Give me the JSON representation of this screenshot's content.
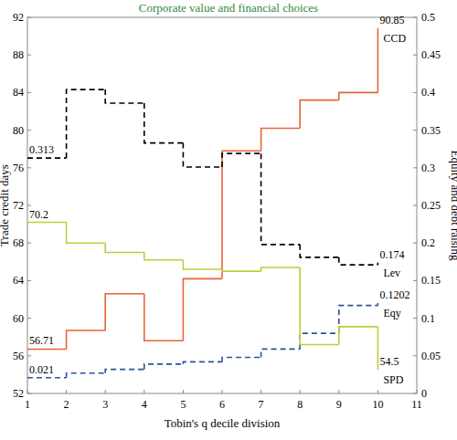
{
  "chart_data": {
    "type": "line",
    "title": "Corporate value and financial choices",
    "x_label": "Tobin's q decile division",
    "y_label": "Trade credit days",
    "y2_label": "Equity and debt raising",
    "x": [
      1,
      2,
      3,
      4,
      5,
      6,
      7,
      8,
      9,
      10
    ],
    "xlim": [
      1,
      11
    ],
    "xticks": [
      1,
      2,
      3,
      4,
      5,
      6,
      7,
      8,
      9,
      10,
      11
    ],
    "ylim": [
      52,
      92
    ],
    "yticks": [
      52,
      56,
      60,
      64,
      68,
      72,
      76,
      80,
      84,
      88,
      92
    ],
    "y2lim": [
      0,
      0.5
    ],
    "y2ticks": [
      0,
      0.05,
      0.1,
      0.15,
      0.2,
      0.25,
      0.3,
      0.35,
      0.4,
      0.45,
      0.5
    ],
    "grid": false,
    "series": [
      {
        "name": "CCD",
        "color": "#e8643a",
        "line_style": "solid",
        "values": [
          56.71,
          58.7,
          62.6,
          57.6,
          64.2,
          77.8,
          80.2,
          83.2,
          84,
          90.85
        ],
        "value_labels": [
          "56.71",
          null,
          null,
          null,
          null,
          null,
          null,
          null,
          null,
          "90.85"
        ]
      },
      {
        "name": "Lev",
        "color": "#000000",
        "line_style": "dashed",
        "axis": "y2",
        "values": [
          0.313,
          0.404,
          0.386,
          0.333,
          0.301,
          0.319,
          0.198,
          0.181,
          0.171,
          0.174
        ],
        "value_labels": [
          "0.313",
          null,
          null,
          null,
          null,
          null,
          null,
          null,
          null,
          "0.174"
        ]
      },
      {
        "name": "Eqy",
        "color": "#2c52a0",
        "line_style": "dashed",
        "axis": "y2",
        "values": [
          0.021,
          0.027,
          0.032,
          0.039,
          0.042,
          0.048,
          0.059,
          0.08,
          0.117,
          0.1202
        ],
        "value_labels": [
          "0.021",
          null,
          null,
          null,
          null,
          null,
          null,
          null,
          null,
          "0.1202"
        ]
      },
      {
        "name": "SPD",
        "color": "#c2cc3a",
        "line_style": "solid",
        "values": [
          70.2,
          68,
          67,
          66.2,
          65.2,
          65,
          65.4,
          57.2,
          59.1,
          54.5
        ],
        "value_labels": [
          "70.2",
          null,
          null,
          null,
          null,
          null,
          null,
          null,
          null,
          "54.5"
        ]
      }
    ]
  }
}
